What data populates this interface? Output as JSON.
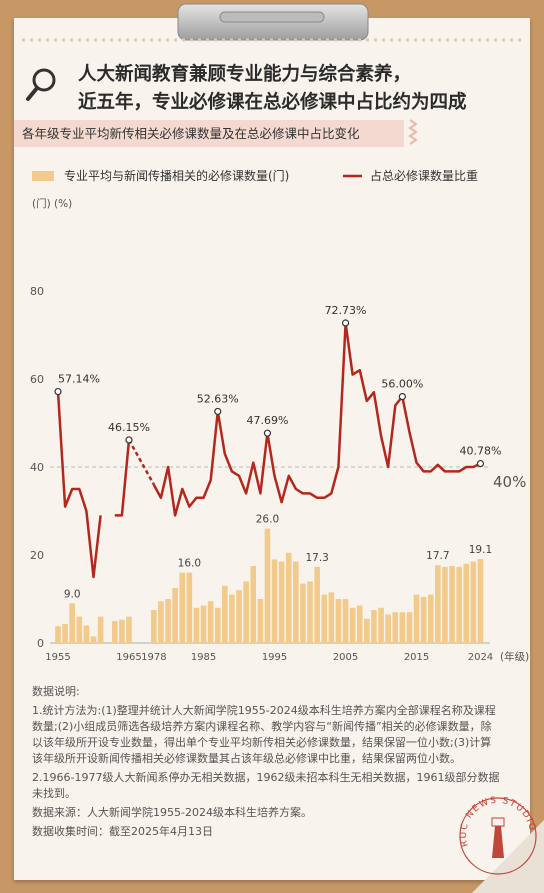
{
  "header": {
    "title_lines": [
      "人大新闻教育兼顾专业能力与综合素养，",
      "近五年，专业必修课在总必修课中占比约为四成"
    ],
    "subtitle": "各年级专业平均新传相关必修课数量及在总必修课中占比变化"
  },
  "chart_data": {
    "type": "combo",
    "y_label": "(门) (%)",
    "x_label": "(年级)",
    "categories": [
      "1955",
      null,
      null,
      null,
      null,
      null,
      null,
      null,
      null,
      null,
      "1965",
      "1978",
      null,
      null,
      null,
      null,
      null,
      null,
      "1985",
      null,
      null,
      null,
      null,
      null,
      null,
      null,
      null,
      null,
      "1995",
      null,
      null,
      null,
      null,
      null,
      null,
      null,
      null,
      null,
      "2005",
      null,
      null,
      null,
      null,
      null,
      null,
      null,
      null,
      null,
      "2015",
      null,
      null,
      null,
      null,
      null,
      null,
      null,
      null,
      "2024"
    ],
    "ylim": [
      0,
      100
    ],
    "yticks": [
      0,
      20,
      40,
      60,
      80
    ],
    "grid": false,
    "reference_line": {
      "value": 40,
      "label": "40%"
    },
    "series": [
      {
        "name": "专业平均与新闻传播相关的必修课数量(门)",
        "type": "bar",
        "color": "#f2cb8c",
        "values": [
          3.8,
          4.3,
          9.0,
          6.0,
          4.0,
          1.5,
          6.0,
          null,
          5.0,
          5.3,
          6.0,
          7.5,
          9.5,
          10,
          12.5,
          16,
          16,
          8,
          8.5,
          9.5,
          8,
          13,
          11,
          12,
          14,
          17.5,
          10,
          26.0,
          19,
          18.5,
          20.5,
          18.5,
          13.5,
          14,
          17.3,
          11,
          11.5,
          10,
          10,
          8,
          8.5,
          5.5,
          7.5,
          8,
          6.5,
          7,
          7,
          7,
          11,
          10.5,
          11,
          17.7,
          17.3,
          17.5,
          17.3,
          18,
          18.5,
          19.1
        ],
        "value_labels": [
          null,
          null,
          "9.0",
          null,
          null,
          null,
          null,
          null,
          null,
          null,
          null,
          null,
          null,
          null,
          null,
          null,
          "16.0",
          null,
          null,
          null,
          null,
          null,
          null,
          null,
          null,
          null,
          null,
          "26.0",
          null,
          null,
          null,
          null,
          null,
          null,
          "17.3",
          null,
          null,
          null,
          null,
          null,
          null,
          null,
          null,
          null,
          null,
          null,
          null,
          null,
          null,
          null,
          null,
          "17.7",
          null,
          null,
          null,
          null,
          null,
          "19.1"
        ]
      },
      {
        "name": "占总必修课数量比重",
        "type": "line",
        "color": "#b3281d",
        "values": [
          57.14,
          31,
          35,
          35,
          30,
          15,
          29,
          null,
          29,
          29,
          46.15,
          36,
          33,
          40,
          29,
          35,
          31,
          33,
          33,
          37,
          52.63,
          43,
          39,
          38,
          34,
          41,
          34,
          47.69,
          38,
          32,
          38,
          35,
          34,
          34,
          33,
          33,
          34,
          40,
          72.73,
          61,
          62,
          55,
          57,
          47,
          40,
          54,
          56.0,
          48,
          41,
          39,
          39,
          40.5,
          39,
          39,
          39,
          40,
          40,
          40.78
        ],
        "value_labels": [
          "57.14%",
          null,
          null,
          null,
          null,
          null,
          null,
          null,
          null,
          null,
          "46.15%",
          null,
          null,
          null,
          null,
          null,
          null,
          null,
          null,
          null,
          "52.63%",
          null,
          null,
          null,
          null,
          null,
          null,
          "47.69%",
          null,
          null,
          null,
          null,
          null,
          null,
          null,
          null,
          null,
          null,
          "72.73%",
          null,
          null,
          null,
          null,
          null,
          null,
          null,
          "56.00%",
          null,
          null,
          null,
          null,
          null,
          null,
          null,
          null,
          null,
          null,
          "40.78%"
        ]
      }
    ]
  },
  "notes": {
    "heading": "数据说明:",
    "items": [
      "1.统计方法为:(1)整理并统计人大新闻学院1955-2024级本科生培养方案内全部课程名称及课程数量;(2)小组成员筛选各级培养方案内课程名称、教学内容与“新闻传播”相关的必修课数量，除以该年级所开设专业数量，得出单个专业平均新传相关必修课数量，结果保留一位小数;(3)计算该年级所开设新闻传播相关必修课数量其占该年级总必修课中比重，结果保留两位小数。",
      "2.1966-1977级人大新闻系停办无相关数据，1962级未招本科生无相关数据，1961级部分数据未找到。"
    ],
    "source": "数据来源：人大新闻学院1955-2024级本科生培养方案。",
    "collected": "数据收集时间：截至2025年4月13日"
  },
  "logo": "RUC NEWS STUDIO"
}
